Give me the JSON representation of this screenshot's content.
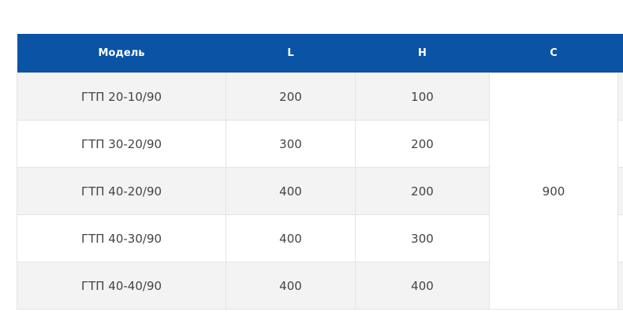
{
  "table": {
    "headers": [
      "Модель",
      "L",
      "H",
      "C",
      ""
    ],
    "rows": [
      {
        "model": "ГТП 20-10/90",
        "L": "200",
        "H": "100"
      },
      {
        "model": "ГТП 30-20/90",
        "L": "300",
        "H": "200"
      },
      {
        "model": "ГТП 40-20/90",
        "L": "400",
        "H": "200"
      },
      {
        "model": "ГТП 40-30/90",
        "L": "400",
        "H": "300"
      },
      {
        "model": "ГТП 40-40/90",
        "L": "400",
        "H": "400"
      }
    ],
    "C_merged": "900"
  }
}
